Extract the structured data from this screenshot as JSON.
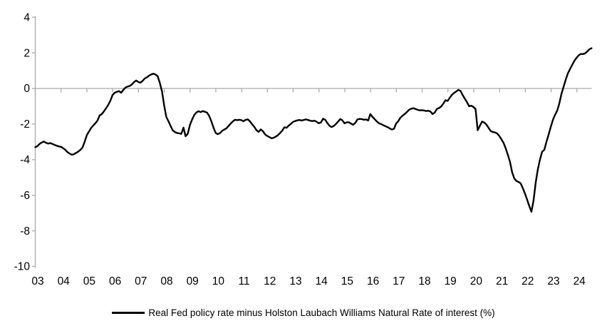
{
  "chart_data": {
    "type": "line",
    "title": "",
    "legend_label": "Real Fed policy rate minus Holston Laubach Williams Natural Rate of interest (%)",
    "legend_position": "bottom-center",
    "grid": "off",
    "axis_color": "#ababab",
    "text_color": "#000000",
    "x": {
      "frequency": "monthly",
      "start": "2003-01",
      "end": "2024-08",
      "tick_labels": [
        "03",
        "04",
        "05",
        "06",
        "07",
        "08",
        "09",
        "10",
        "11",
        "12",
        "13",
        "14",
        "15",
        "16",
        "17",
        "18",
        "19",
        "20",
        "21",
        "22",
        "23",
        "24"
      ]
    },
    "y": {
      "min": -10,
      "max": 4,
      "ticks": [
        4,
        2,
        0,
        -2,
        -4,
        -6,
        -8,
        -10
      ]
    },
    "series": [
      {
        "name": "Real Fed policy rate minus Holston Laubach Williams Natural Rate of interest (%)",
        "color": "#000000",
        "values": [
          -3.3,
          -3.24,
          -3.12,
          -3.04,
          -2.98,
          -3.05,
          -3.1,
          -3.07,
          -3.12,
          -3.17,
          -3.22,
          -3.26,
          -3.28,
          -3.36,
          -3.45,
          -3.58,
          -3.66,
          -3.72,
          -3.7,
          -3.62,
          -3.55,
          -3.45,
          -3.32,
          -3.0,
          -2.62,
          -2.42,
          -2.22,
          -2.08,
          -1.95,
          -1.8,
          -1.51,
          -1.44,
          -1.28,
          -1.1,
          -0.92,
          -0.68,
          -0.37,
          -0.24,
          -0.19,
          -0.15,
          -0.24,
          -0.08,
          0.05,
          0.11,
          0.14,
          0.23,
          0.36,
          0.45,
          0.36,
          0.33,
          0.43,
          0.56,
          0.63,
          0.72,
          0.79,
          0.83,
          0.78,
          0.69,
          0.3,
          -0.17,
          -0.95,
          -1.6,
          -1.84,
          -2.1,
          -2.35,
          -2.45,
          -2.5,
          -2.52,
          -2.55,
          -2.2,
          -2.68,
          -2.55,
          -2.05,
          -1.75,
          -1.5,
          -1.35,
          -1.28,
          -1.33,
          -1.27,
          -1.31,
          -1.36,
          -1.55,
          -1.85,
          -2.2,
          -2.5,
          -2.57,
          -2.51,
          -2.38,
          -2.31,
          -2.24,
          -2.11,
          -1.97,
          -1.85,
          -1.76,
          -1.78,
          -1.76,
          -1.78,
          -1.84,
          -1.76,
          -1.74,
          -1.86,
          -2.02,
          -2.16,
          -2.34,
          -2.44,
          -2.3,
          -2.4,
          -2.58,
          -2.67,
          -2.73,
          -2.8,
          -2.77,
          -2.71,
          -2.62,
          -2.5,
          -2.37,
          -2.18,
          -2.21,
          -2.09,
          -1.99,
          -1.88,
          -1.83,
          -1.79,
          -1.77,
          -1.8,
          -1.77,
          -1.74,
          -1.77,
          -1.81,
          -1.83,
          -1.81,
          -1.87,
          -1.95,
          -1.91,
          -1.7,
          -1.76,
          -1.94,
          -2.1,
          -2.17,
          -2.11,
          -1.99,
          -1.86,
          -1.72,
          -1.79,
          -1.96,
          -1.9,
          -1.9,
          -1.97,
          -2.04,
          -1.93,
          -1.74,
          -1.71,
          -1.72,
          -1.76,
          -1.74,
          -1.8,
          -1.44,
          -1.6,
          -1.72,
          -1.85,
          -1.95,
          -2.0,
          -2.06,
          -2.12,
          -2.17,
          -2.24,
          -2.31,
          -2.27,
          -1.97,
          -1.84,
          -1.64,
          -1.53,
          -1.44,
          -1.33,
          -1.2,
          -1.14,
          -1.11,
          -1.15,
          -1.2,
          -1.23,
          -1.22,
          -1.24,
          -1.27,
          -1.25,
          -1.3,
          -1.44,
          -1.35,
          -1.15,
          -1.1,
          -1.01,
          -0.85,
          -0.66,
          -0.7,
          -0.52,
          -0.36,
          -0.25,
          -0.17,
          -0.08,
          -0.14,
          -0.37,
          -0.57,
          -0.77,
          -1.0,
          -0.97,
          -1.04,
          -1.16,
          -2.35,
          -2.1,
          -1.86,
          -1.91,
          -2.02,
          -2.2,
          -2.38,
          -2.45,
          -2.47,
          -2.53,
          -2.66,
          -2.85,
          -3.05,
          -3.35,
          -3.72,
          -4.1,
          -4.7,
          -5.05,
          -5.2,
          -5.25,
          -5.33,
          -5.6,
          -5.9,
          -6.25,
          -6.6,
          -6.93,
          -6.3,
          -5.3,
          -4.55,
          -4.0,
          -3.55,
          -3.45,
          -3.0,
          -2.6,
          -2.17,
          -1.77,
          -1.48,
          -1.25,
          -0.84,
          -0.3,
          0.1,
          0.5,
          0.85,
          1.1,
          1.33,
          1.55,
          1.72,
          1.86,
          1.94,
          1.93,
          1.97,
          2.08,
          2.2,
          2.26
        ]
      }
    ]
  }
}
